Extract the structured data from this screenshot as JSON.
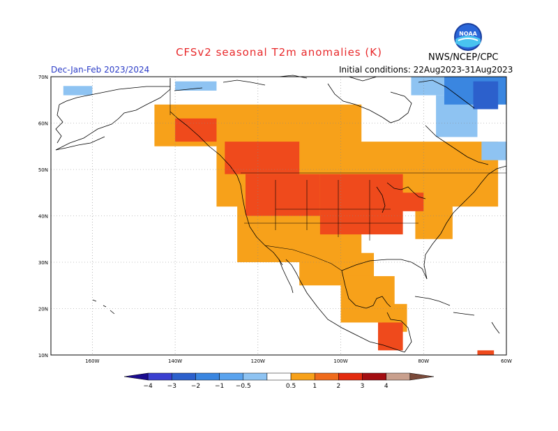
{
  "title": "CFSv2 seasonal T2m anomalies (K)",
  "season": "Dec-Jan-Feb 2023/2024",
  "initial_conditions": "Initial conditions: 22Aug2023-31Aug2023",
  "agency": "NWS/NCEP/CPC",
  "logo_text": "NOAA",
  "map": {
    "lat_labels": [
      "70N",
      "60N",
      "50N",
      "40N",
      "30N",
      "20N",
      "10N"
    ],
    "lon_labels": [
      "160W",
      "140W",
      "120W",
      "100W",
      "80W",
      "60W"
    ],
    "lat_values": [
      70,
      60,
      50,
      40,
      30,
      20,
      10
    ],
    "lon_values": [
      -160,
      -140,
      -120,
      -100,
      -80,
      -60
    ],
    "lat_range": [
      10,
      70
    ],
    "lon_range": [
      -170,
      -60
    ]
  },
  "legend": {
    "bins": [
      {
        "color": "#1a0b8f"
      },
      {
        "color": "#3a3fd0"
      },
      {
        "color": "#2c60cc"
      },
      {
        "color": "#3a86e0"
      },
      {
        "color": "#5aa3ee"
      },
      {
        "color": "#8ec3f2"
      },
      {
        "color": "#ffffff"
      },
      {
        "color": "#f7a11a"
      },
      {
        "color": "#ef6b1c"
      },
      {
        "color": "#e32b0f"
      },
      {
        "color": "#a30e12"
      },
      {
        "color": "#c9a08e"
      },
      {
        "color": "#7a4a3a"
      }
    ],
    "labels": [
      "−4",
      "−3",
      "−2",
      "−1",
      "−0.5",
      "0.5",
      "1",
      "2",
      "3",
      "4"
    ]
  },
  "colors": {
    "weak_warm": "#f7a11a",
    "moderate_warm": "#ef4a1c",
    "weak_cold": "#8ec3f2",
    "moderate_cold": "#3a86e0",
    "strong_cold": "#2c60cc",
    "title": "#e8282a",
    "season_text": "#2b3cc7"
  }
}
